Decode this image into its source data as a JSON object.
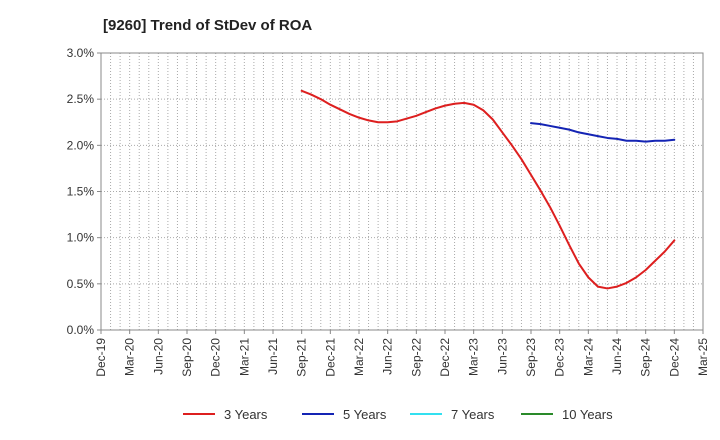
{
  "chart_data": {
    "type": "line",
    "title": "[9260]  Trend of StDev of ROA",
    "xlabel": "",
    "ylabel": "",
    "ylim": [
      0,
      3.0
    ],
    "yticks": [
      0,
      0.5,
      1.0,
      1.5,
      2.0,
      2.5,
      3.0
    ],
    "ytick_labels": [
      "0.0%",
      "0.5%",
      "1.0%",
      "1.5%",
      "2.0%",
      "2.5%",
      "3.0%"
    ],
    "x_ticks": [
      "Dec-19",
      "Mar-20",
      "Jun-20",
      "Sep-20",
      "Dec-20",
      "Mar-21",
      "Jun-21",
      "Sep-21",
      "Dec-21",
      "Mar-22",
      "Jun-22",
      "Sep-22",
      "Dec-22",
      "Mar-23",
      "Jun-23",
      "Sep-23",
      "Dec-23",
      "Mar-24",
      "Jun-24",
      "Sep-24",
      "Dec-24",
      "Mar-25"
    ],
    "grid": true,
    "legend_position": "bottom",
    "series": [
      {
        "name": "3 Years",
        "color": "#dd1f1f",
        "points": [
          [
            "Sep-21",
            2.59
          ],
          [
            "Oct-21",
            2.55
          ],
          [
            "Nov-21",
            2.5
          ],
          [
            "Dec-21",
            2.44
          ],
          [
            "Jan-22",
            2.39
          ],
          [
            "Feb-22",
            2.34
          ],
          [
            "Mar-22",
            2.3
          ],
          [
            "Apr-22",
            2.27
          ],
          [
            "May-22",
            2.25
          ],
          [
            "Jun-22",
            2.25
          ],
          [
            "Jul-22",
            2.26
          ],
          [
            "Aug-22",
            2.29
          ],
          [
            "Sep-22",
            2.32
          ],
          [
            "Oct-22",
            2.36
          ],
          [
            "Nov-22",
            2.4
          ],
          [
            "Dec-22",
            2.43
          ],
          [
            "Jan-23",
            2.45
          ],
          [
            "Feb-23",
            2.46
          ],
          [
            "Mar-23",
            2.44
          ],
          [
            "Apr-23",
            2.38
          ],
          [
            "May-23",
            2.28
          ],
          [
            "Jun-23",
            2.14
          ],
          [
            "Jul-23",
            2.0
          ],
          [
            "Aug-23",
            1.85
          ],
          [
            "Sep-23",
            1.68
          ],
          [
            "Oct-23",
            1.51
          ],
          [
            "Nov-23",
            1.33
          ],
          [
            "Dec-23",
            1.13
          ],
          [
            "Jan-24",
            0.92
          ],
          [
            "Feb-24",
            0.72
          ],
          [
            "Mar-24",
            0.57
          ],
          [
            "Apr-24",
            0.47
          ],
          [
            "May-24",
            0.45
          ],
          [
            "Jun-24",
            0.47
          ],
          [
            "Jul-24",
            0.51
          ],
          [
            "Aug-24",
            0.57
          ],
          [
            "Sep-24",
            0.65
          ],
          [
            "Oct-24",
            0.75
          ],
          [
            "Nov-24",
            0.85
          ],
          [
            "Dec-24",
            0.97
          ]
        ]
      },
      {
        "name": "5 Years",
        "color": "#1424b4",
        "points": [
          [
            "Sep-23",
            2.24
          ],
          [
            "Oct-23",
            2.23
          ],
          [
            "Nov-23",
            2.21
          ],
          [
            "Dec-23",
            2.19
          ],
          [
            "Jan-24",
            2.17
          ],
          [
            "Feb-24",
            2.14
          ],
          [
            "Mar-24",
            2.12
          ],
          [
            "Apr-24",
            2.1
          ],
          [
            "May-24",
            2.08
          ],
          [
            "Jun-24",
            2.07
          ],
          [
            "Jul-24",
            2.05
          ],
          [
            "Aug-24",
            2.05
          ],
          [
            "Sep-24",
            2.04
          ],
          [
            "Oct-24",
            2.05
          ],
          [
            "Nov-24",
            2.05
          ],
          [
            "Dec-24",
            2.06
          ]
        ]
      },
      {
        "name": "7 Years",
        "color": "#33e0f0",
        "points": []
      },
      {
        "name": "10 Years",
        "color": "#2a8a2a",
        "points": []
      }
    ]
  }
}
